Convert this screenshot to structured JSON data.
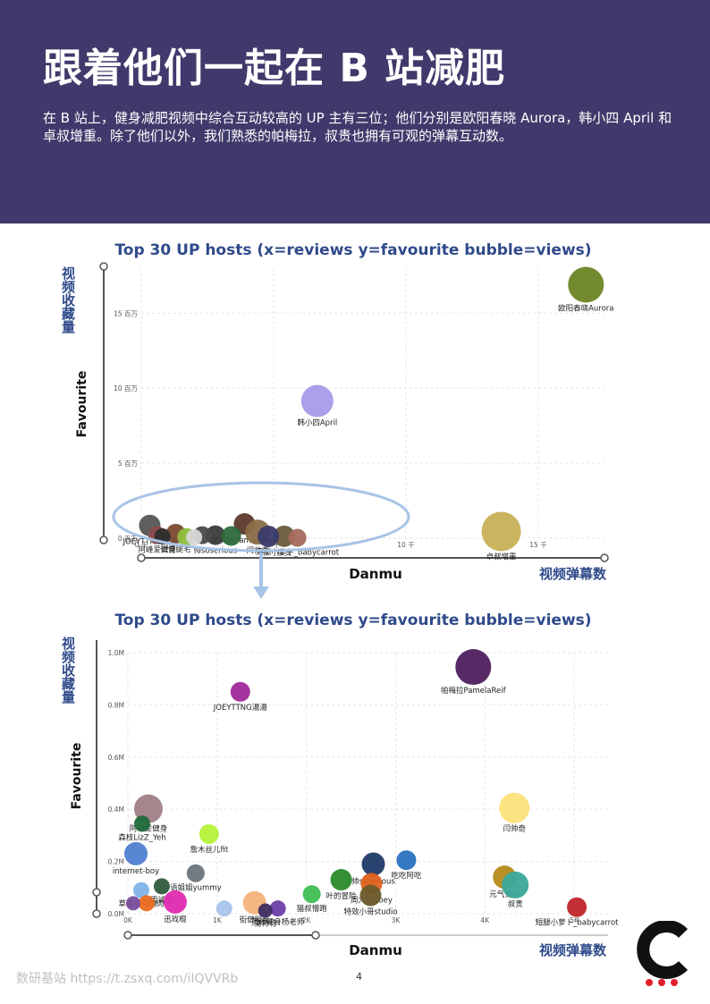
{
  "page": {
    "title": "跟着他们一起在 B 站减肥",
    "intro": "在 B 站上，健身减肥视频中综合互动较高的 UP 主有三位；他们分别是欧阳春晓 Aurora，韩小四 April 和卓叔增重。除了他们以外，我们熟悉的帕梅拉，叔贵也拥有可观的弹幕互动数。",
    "source": "数研基站 https://t.zsxq.com/iIQVVRb",
    "page_number": "4"
  },
  "chart_data": [
    {
      "type": "scatter",
      "title": "Top 30 UP hosts (x=reviews y=favourite bubble=views)",
      "xlabel": "Danmu",
      "ylabel": "Favourite",
      "x_caption": "视频弹幕数",
      "y_caption": "视频收藏量",
      "xlim": [
        0,
        17500
      ],
      "ylim": [
        0,
        18000000
      ],
      "x_ticks": [
        {
          "v": 0,
          "label": "0 千"
        },
        {
          "v": 5000,
          "label": "5 千"
        },
        {
          "v": 10000,
          "label": "10 千"
        },
        {
          "v": 15000,
          "label": "15 千"
        }
      ],
      "y_ticks": [
        {
          "v": 0,
          "label": "0 百万"
        },
        {
          "v": 5000000,
          "label": "5 百万"
        },
        {
          "v": 10000000,
          "label": "10 百万"
        },
        {
          "v": 15000000,
          "label": "15 百万"
        }
      ],
      "grid": true,
      "points": [
        {
          "label": "欧阳春晓Aurora",
          "x": 16800,
          "y": 16900000,
          "r": 20,
          "color": "#6b8523"
        },
        {
          "label": "韩小四April",
          "x": 6650,
          "y": 9150000,
          "r": 18,
          "color": "#a99ae8"
        },
        {
          "label": "卓叔增重",
          "x": 13600,
          "y": 450000,
          "r": 22,
          "color": "#c8b057"
        },
        {
          "label": "JOEYTTNG湯湯",
          "x": 320,
          "y": 850000,
          "r": 12,
          "color": "#555555"
        },
        {
          "label": "帕梅拉PamelaReif",
          "x": 3900,
          "y": 950000,
          "r": 12,
          "color": "#5c3a2e"
        },
        {
          "label": "闫帅奇",
          "x": 4400,
          "y": 400000,
          "r": 14,
          "color": "#8a6d46"
        },
        {
          "label": "叔贵",
          "x": 5400,
          "y": 130000,
          "r": 12,
          "color": "#6a5b3a"
        },
        {
          "label": "短腿小萝卜_babycarrot",
          "x": 5900,
          "y": 30000,
          "r": 10,
          "color": "#a46a5c"
        },
        {
          "label": "街健腿毛",
          "x": 1300,
          "y": 300000,
          "r": 11,
          "color": "#7a4a2f"
        },
        {
          "label": "帅soserious",
          "x": 2800,
          "y": 200000,
          "r": 11,
          "color": "#3b3b3b"
        },
        {
          "label": "阿峰爱健身",
          "x": 600,
          "y": 200000,
          "r": 10,
          "color": "#8b4a4a"
        },
        {
          "label": "",
          "x": 2300,
          "y": 200000,
          "r": 10,
          "color": "#4a4a4a"
        },
        {
          "label": "",
          "x": 3400,
          "y": 150000,
          "r": 11,
          "color": "#2e6b3b"
        },
        {
          "label": "",
          "x": 4800,
          "y": 120000,
          "r": 12,
          "color": "#3a3a6a"
        },
        {
          "label": "",
          "x": 1700,
          "y": 80000,
          "r": 10,
          "color": "#8fbf3f"
        },
        {
          "label": "",
          "x": 800,
          "y": 120000,
          "r": 9,
          "color": "#2d2d2d"
        },
        {
          "label": "",
          "x": 2000,
          "y": 60000,
          "r": 9,
          "color": "#d8d8d8"
        }
      ]
    },
    {
      "type": "scatter",
      "title": "Top 30 UP hosts (x=reviews y=favourite bubble=views)",
      "xlabel": "Danmu",
      "ylabel": "Favourite",
      "x_caption": "视频弹幕数",
      "y_caption": "视频收藏量",
      "xlim": [
        0,
        5400
      ],
      "ylim": [
        0,
        1000000
      ],
      "x_ticks": [
        {
          "v": 0,
          "label": "0K"
        },
        {
          "v": 1000,
          "label": "1K"
        },
        {
          "v": 2000,
          "label": "2K"
        },
        {
          "v": 3000,
          "label": "3K"
        },
        {
          "v": 4000,
          "label": "4K"
        },
        {
          "v": 5000,
          "label": "5K"
        }
      ],
      "y_ticks": [
        {
          "v": 0,
          "label": "0.0M"
        },
        {
          "v": 200000,
          "label": "0.2M"
        },
        {
          "v": 400000,
          "label": "0.4M"
        },
        {
          "v": 600000,
          "label": "0.6M"
        },
        {
          "v": 800000,
          "label": "0.8M"
        },
        {
          "v": 1000000,
          "label": "1.0M"
        }
      ],
      "grid": true,
      "points": [
        {
          "label": "帕梅拉PamelaReif",
          "x": 3870,
          "y": 945000,
          "r": 20,
          "color": "#4e1f5e"
        },
        {
          "label": "JOEYTTNG湯湯",
          "x": 1260,
          "y": 850000,
          "r": 11,
          "color": "#a0289b"
        },
        {
          "label": "阿峰爱健身",
          "x": 230,
          "y": 402000,
          "r": 16,
          "color": "#a07f86"
        },
        {
          "label": "森枝LizZ_Yeh",
          "x": 160,
          "y": 345000,
          "r": 9,
          "color": "#1f6b3a"
        },
        {
          "label": "詹木丝儿fit",
          "x": 910,
          "y": 305000,
          "r": 11,
          "color": "#b5f23a"
        },
        {
          "label": "internet-boy",
          "x": 90,
          "y": 230000,
          "r": 13,
          "color": "#4f7fd1"
        },
        {
          "label": "语姐姐yummy",
          "x": 760,
          "y": 155000,
          "r": 10,
          "color": "#6b747a"
        },
        {
          "label": "草莓味鸡胸肉",
          "x": 150,
          "y": 90000,
          "r": 9,
          "color": "#7fb3e6"
        },
        {
          "label": "周诚泽",
          "x": 380,
          "y": 105000,
          "r": 9,
          "color": "#2f5a3a"
        },
        {
          "label": "迅戏棍",
          "x": 530,
          "y": 45000,
          "r": 13,
          "color": "#e02ab0"
        },
        {
          "label": "",
          "x": 210,
          "y": 40000,
          "r": 9,
          "color": "#ec6a1f"
        },
        {
          "label": "",
          "x": 60,
          "y": 40000,
          "r": 8,
          "color": "#7a4d9e"
        },
        {
          "label": "",
          "x": 1080,
          "y": 20000,
          "r": 9,
          "color": "#a9c3ea"
        },
        {
          "label": "街健腿毛",
          "x": 1420,
          "y": 42000,
          "r": 13,
          "color": "#f3b37a"
        },
        {
          "label": "灵魂健身杨老师",
          "x": 1680,
          "y": 20000,
          "r": 9,
          "color": "#6a3ea8"
        },
        {
          "label": "蒲特特",
          "x": 1540,
          "y": 12000,
          "r": 8,
          "color": "#3b2b5e"
        },
        {
          "label": "猫叔懵跑",
          "x": 2060,
          "y": 75000,
          "r": 10,
          "color": "#3fbf52"
        },
        {
          "label": "叶的冒险",
          "x": 2390,
          "y": 130000,
          "r": 12,
          "color": "#2a8a2a"
        },
        {
          "label": "帅soserious",
          "x": 2750,
          "y": 190000,
          "r": 13,
          "color": "#1f3a68"
        },
        {
          "label": "周六野Zoey",
          "x": 2730,
          "y": 115000,
          "r": 12,
          "color": "#e0601c"
        },
        {
          "label": "特效小哥studio",
          "x": 2720,
          "y": 70000,
          "r": 12,
          "color": "#6b5a2a"
        },
        {
          "label": "吃吃阿吃",
          "x": 3120,
          "y": 205000,
          "r": 11,
          "color": "#2a72c0"
        },
        {
          "label": "闫帅奇",
          "x": 4330,
          "y": 405000,
          "r": 17,
          "color": "#fbe27a"
        },
        {
          "label": "元气菊仔",
          "x": 4220,
          "y": 140000,
          "r": 13,
          "color": "#b58a1a"
        },
        {
          "label": "叔贵",
          "x": 4340,
          "y": 110000,
          "r": 15,
          "color": "#3aa89a"
        },
        {
          "label": "短腿小萝卜_babycarrot",
          "x": 5030,
          "y": 25000,
          "r": 11,
          "color": "#c0252a"
        }
      ]
    }
  ]
}
